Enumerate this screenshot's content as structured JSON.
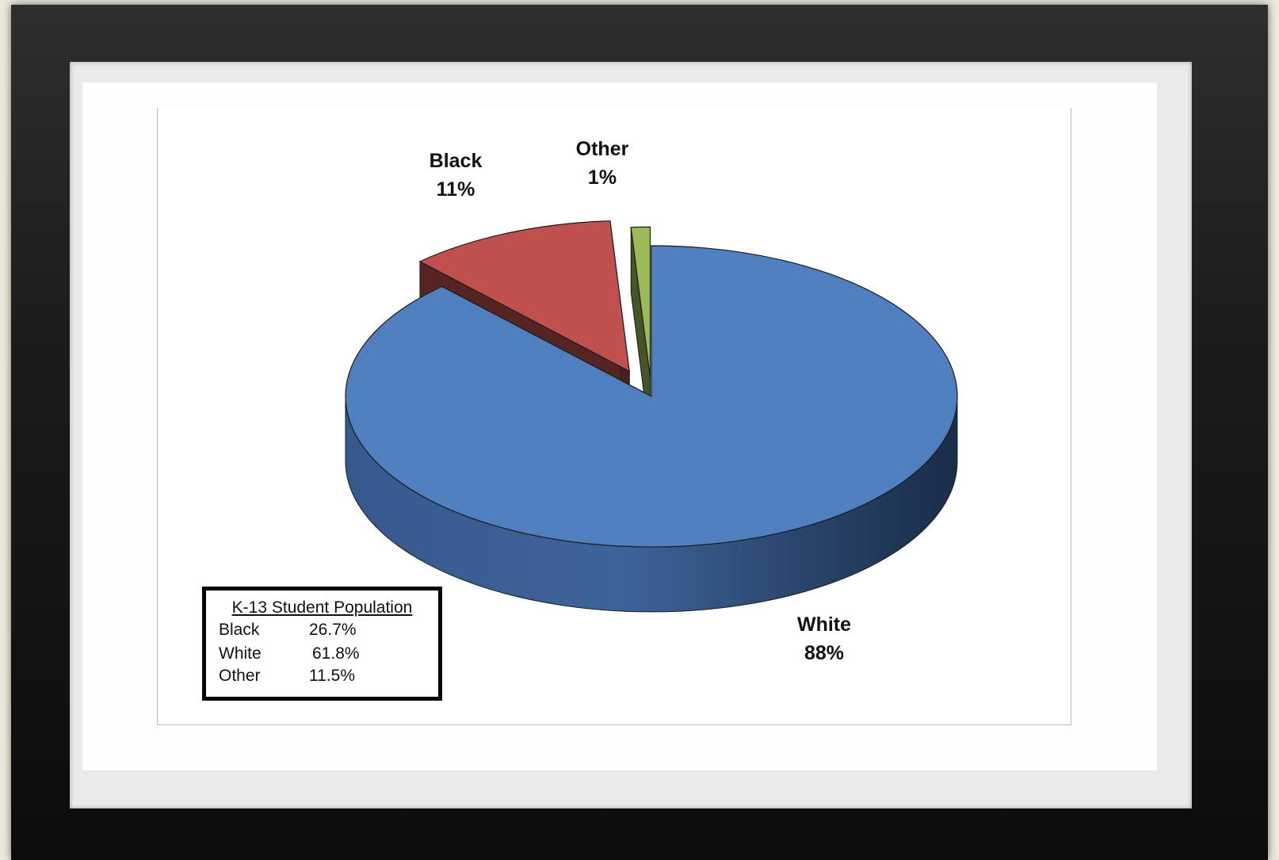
{
  "chart_data": {
    "type": "pie",
    "style": "3d-exploded",
    "slices": [
      {
        "label": "White",
        "value": 88,
        "display": "88%",
        "color": "#4f7fbf",
        "exploded": false
      },
      {
        "label": "Black",
        "value": 11,
        "display": "11%",
        "color": "#c0504d",
        "exploded": true
      },
      {
        "label": "Other",
        "value": 1,
        "display": "1%",
        "color": "#9bbb59",
        "exploded": true
      }
    ],
    "title": "",
    "legend": "none"
  },
  "population_box": {
    "title": "K-13 Student Population",
    "rows": [
      {
        "label": "Black",
        "value": "26.7%"
      },
      {
        "label": "White",
        "value": "61.8%"
      },
      {
        "label": "Other",
        "value": "11.5%"
      }
    ]
  }
}
